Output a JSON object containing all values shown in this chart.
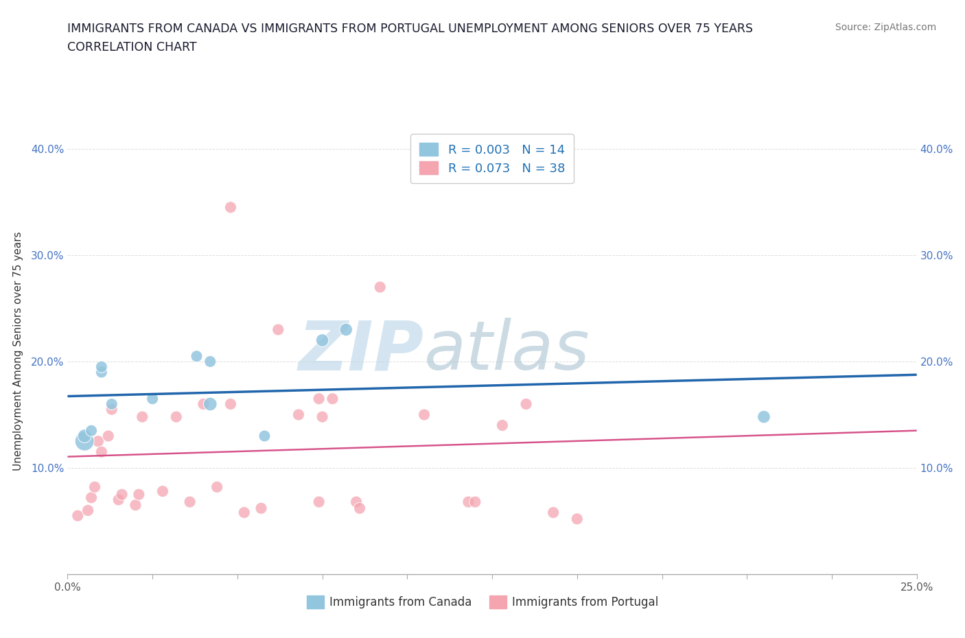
{
  "title_line1": "IMMIGRANTS FROM CANADA VS IMMIGRANTS FROM PORTUGAL UNEMPLOYMENT AMONG SENIORS OVER 75 YEARS",
  "title_line2": "CORRELATION CHART",
  "source_text": "Source: ZipAtlas.com",
  "ylabel": "Unemployment Among Seniors over 75 years",
  "xlim": [
    0.0,
    0.25
  ],
  "ylim": [
    0.0,
    0.42
  ],
  "xticks": [
    0.0,
    0.025,
    0.05,
    0.075,
    0.1,
    0.125,
    0.15,
    0.175,
    0.2,
    0.225,
    0.25
  ],
  "yticks": [
    0.0,
    0.1,
    0.2,
    0.3,
    0.4
  ],
  "canada_color": "#92c5de",
  "portugal_color": "#f4a5b0",
  "canada_label": "Immigrants from Canada",
  "portugal_label": "Immigrants from Portugal",
  "r_canada": "0.003",
  "n_canada": "14",
  "r_portugal": "0.073",
  "n_portugal": "38",
  "watermark_zip": "ZIP",
  "watermark_atlas": "atlas",
  "background_color": "#ffffff",
  "grid_color": "#dddddd",
  "trend_canada_color": "#2166ac",
  "trend_portugal_color": "#d6538a",
  "canada_x": [
    0.005,
    0.005,
    0.007,
    0.01,
    0.01,
    0.013,
    0.025,
    0.038,
    0.042,
    0.042,
    0.058,
    0.075,
    0.082,
    0.205
  ],
  "canada_y": [
    0.125,
    0.13,
    0.135,
    0.19,
    0.195,
    0.16,
    0.165,
    0.205,
    0.2,
    0.16,
    0.13,
    0.22,
    0.23,
    0.148
  ],
  "canada_size": [
    400,
    200,
    150,
    150,
    150,
    150,
    150,
    150,
    150,
    200,
    150,
    180,
    180,
    180
  ],
  "portugal_x": [
    0.003,
    0.006,
    0.007,
    0.008,
    0.009,
    0.01,
    0.012,
    0.013,
    0.015,
    0.016,
    0.02,
    0.021,
    0.022,
    0.028,
    0.032,
    0.036,
    0.04,
    0.044,
    0.048,
    0.048,
    0.052,
    0.057,
    0.062,
    0.068,
    0.074,
    0.074,
    0.075,
    0.078,
    0.085,
    0.086,
    0.092,
    0.105,
    0.118,
    0.12,
    0.128,
    0.135,
    0.143,
    0.15
  ],
  "portugal_y": [
    0.055,
    0.06,
    0.072,
    0.082,
    0.125,
    0.115,
    0.13,
    0.155,
    0.07,
    0.075,
    0.065,
    0.075,
    0.148,
    0.078,
    0.148,
    0.068,
    0.16,
    0.082,
    0.16,
    0.345,
    0.058,
    0.062,
    0.23,
    0.15,
    0.165,
    0.068,
    0.148,
    0.165,
    0.068,
    0.062,
    0.27,
    0.15,
    0.068,
    0.068,
    0.14,
    0.16,
    0.058,
    0.052
  ],
  "portugal_size": [
    150,
    150,
    150,
    150,
    150,
    150,
    150,
    150,
    150,
    150,
    150,
    150,
    150,
    150,
    150,
    150,
    150,
    150,
    150,
    150,
    150,
    150,
    150,
    150,
    150,
    150,
    150,
    150,
    150,
    150,
    150,
    150,
    150,
    150,
    150,
    150,
    150,
    150
  ]
}
